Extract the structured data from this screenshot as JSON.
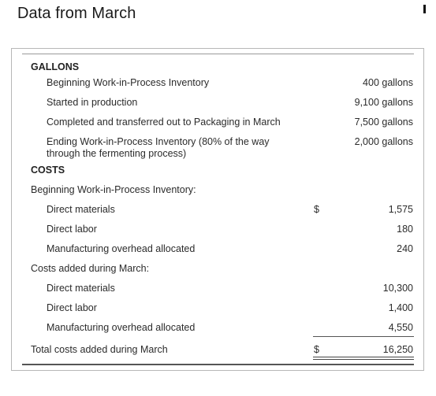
{
  "title": "Data from March",
  "gallons": {
    "heading": "GALLONS",
    "rows": [
      {
        "label": "Beginning Work-in-Process Inventory",
        "value": "400 gallons"
      },
      {
        "label": "Started in production",
        "value": "9,100 gallons"
      },
      {
        "label": "Completed and transferred out to Packaging in March",
        "value": "7,500 gallons"
      },
      {
        "label_line1": "Ending Work-in-Process Inventory (80% of the way",
        "label_line2": "through the fermenting process)",
        "value": "2,000 gallons"
      }
    ]
  },
  "costs": {
    "heading": "COSTS",
    "beginning_heading": "Beginning Work-in-Process Inventory:",
    "beginning": [
      {
        "label": "Direct materials",
        "currency": "$",
        "value": "1,575"
      },
      {
        "label": "Direct labor",
        "value": "180"
      },
      {
        "label": "Manufacturing overhead allocated",
        "value": "240"
      }
    ],
    "added_heading": "Costs added during March:",
    "added": [
      {
        "label": "Direct materials",
        "value": "10,300"
      },
      {
        "label": "Direct labor",
        "value": "1,400"
      },
      {
        "label": "Manufacturing overhead allocated",
        "value": "4,550"
      }
    ],
    "total": {
      "label": "Total costs added during March",
      "currency": "$",
      "value": "16,250"
    }
  }
}
